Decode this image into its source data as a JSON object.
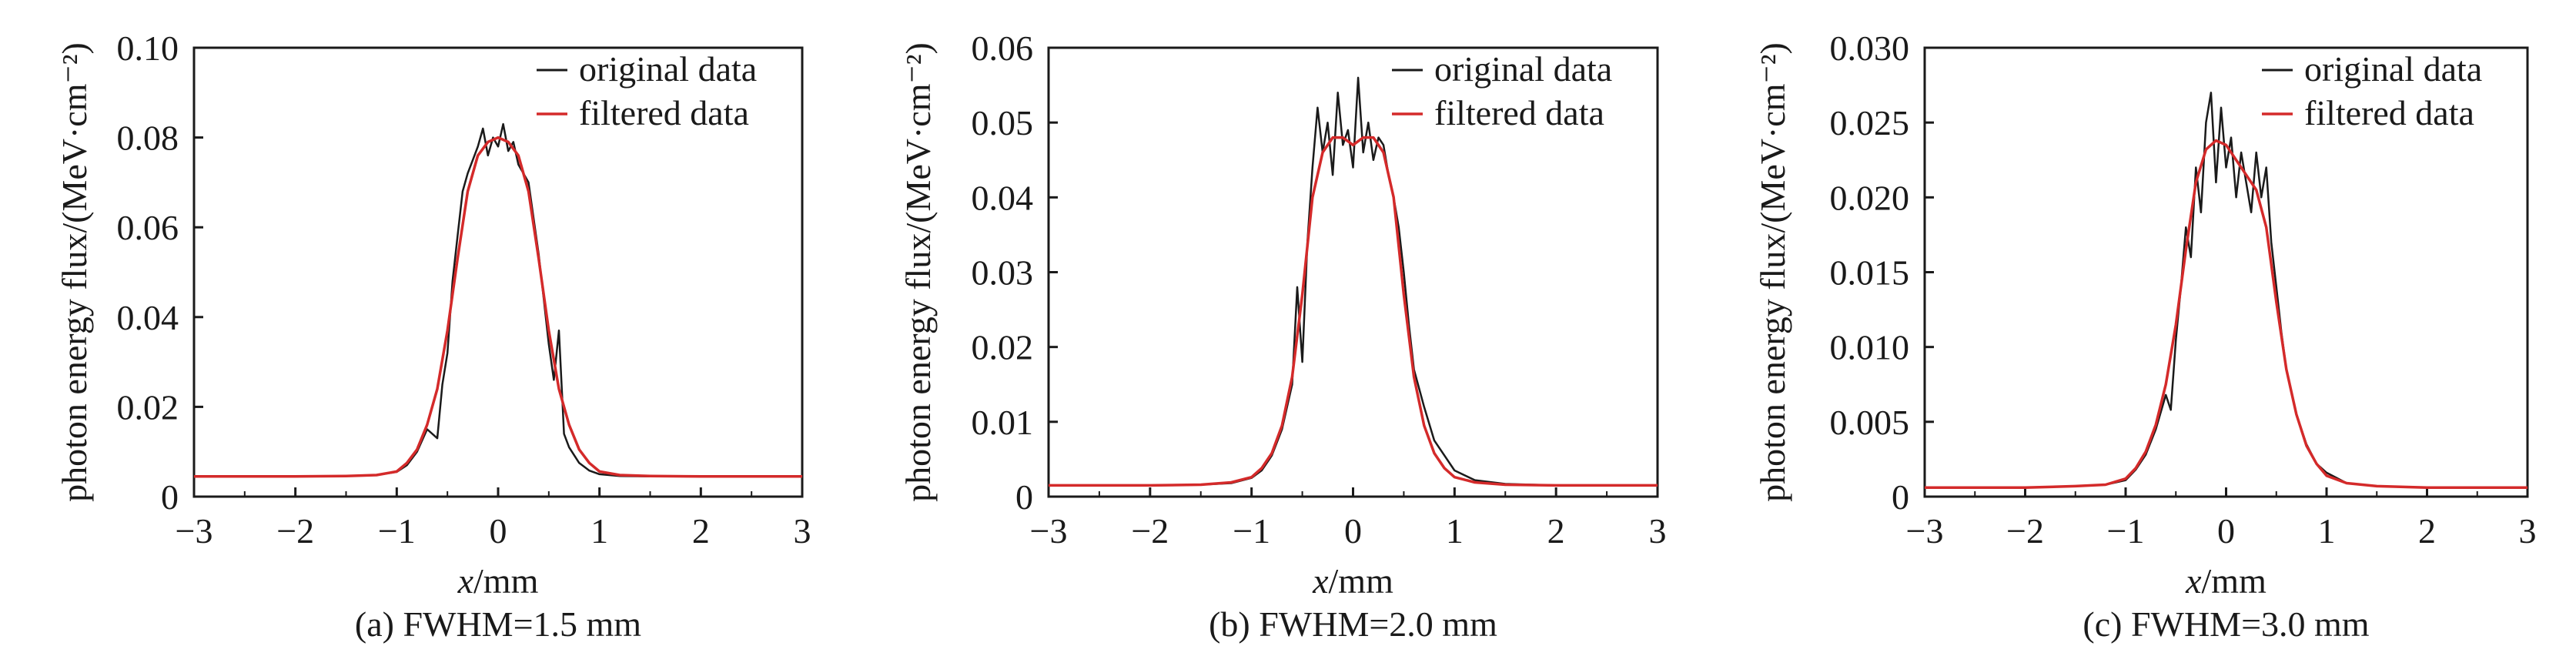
{
  "legend": {
    "original": "original data",
    "filtered": "filtered data"
  },
  "colors": {
    "original": "#1a1a1a",
    "filtered": "#d42a2a",
    "axis": "#1a1a1a"
  },
  "chart_data": [
    {
      "type": "line",
      "caption": "(a) FWHM=1.5 mm",
      "xlabel_var": "x",
      "xlabel_unit": "/mm",
      "ylabel": "photon energy flux/(MeV·cm⁻²)",
      "xlim": [
        -3,
        3
      ],
      "ylim": [
        0,
        0.1
      ],
      "xticks": [
        -3,
        -2,
        -1,
        0,
        1,
        2,
        3
      ],
      "xtick_labels": [
        "−3",
        "−2",
        "−1",
        "0",
        "1",
        "2",
        "3"
      ],
      "yticks": [
        0,
        0.02,
        0.04,
        0.06,
        0.08,
        0.1
      ],
      "ytick_labels": [
        "0",
        "0.02",
        "0.04",
        "0.06",
        "0.08",
        "0.10"
      ],
      "legend_position": "top-right",
      "grid": false,
      "series": [
        {
          "name": "original data",
          "x": [
            -3,
            -2,
            -1.5,
            -1.2,
            -1.0,
            -0.9,
            -0.8,
            -0.7,
            -0.6,
            -0.55,
            -0.5,
            -0.45,
            -0.4,
            -0.35,
            -0.3,
            -0.25,
            -0.2,
            -0.15,
            -0.1,
            -0.05,
            0,
            0.05,
            0.1,
            0.15,
            0.2,
            0.25,
            0.3,
            0.35,
            0.4,
            0.45,
            0.5,
            0.55,
            0.6,
            0.65,
            0.7,
            0.8,
            0.9,
            1.0,
            1.2,
            1.5,
            2,
            3
          ],
          "y": [
            0.0045,
            0.0045,
            0.0046,
            0.0048,
            0.0055,
            0.007,
            0.01,
            0.015,
            0.013,
            0.025,
            0.032,
            0.048,
            0.058,
            0.068,
            0.072,
            0.075,
            0.078,
            0.082,
            0.076,
            0.08,
            0.078,
            0.083,
            0.077,
            0.079,
            0.074,
            0.072,
            0.07,
            0.062,
            0.054,
            0.044,
            0.034,
            0.026,
            0.037,
            0.014,
            0.011,
            0.0075,
            0.0058,
            0.005,
            0.0046,
            0.0045,
            0.0045,
            0.0045
          ]
        },
        {
          "name": "filtered data",
          "x": [
            -3,
            -2,
            -1.5,
            -1.2,
            -1.0,
            -0.9,
            -0.8,
            -0.7,
            -0.6,
            -0.5,
            -0.4,
            -0.3,
            -0.2,
            -0.1,
            0,
            0.1,
            0.2,
            0.3,
            0.4,
            0.5,
            0.6,
            0.7,
            0.8,
            0.9,
            1.0,
            1.2,
            1.5,
            2,
            3
          ],
          "y": [
            0.0045,
            0.0045,
            0.0046,
            0.0048,
            0.0056,
            0.0075,
            0.0105,
            0.016,
            0.024,
            0.037,
            0.053,
            0.068,
            0.076,
            0.079,
            0.08,
            0.079,
            0.076,
            0.068,
            0.053,
            0.037,
            0.024,
            0.016,
            0.0105,
            0.0075,
            0.0056,
            0.0048,
            0.0046,
            0.0045,
            0.0045
          ]
        }
      ]
    },
    {
      "type": "line",
      "caption": "(b) FWHM=2.0 mm",
      "xlabel_var": "x",
      "xlabel_unit": "/mm",
      "ylabel": "photon energy flux/(MeV·cm⁻²)",
      "xlim": [
        -3,
        3
      ],
      "ylim": [
        0,
        0.06
      ],
      "xticks": [
        -3,
        -2,
        -1,
        0,
        1,
        2,
        3
      ],
      "xtick_labels": [
        "−3",
        "−2",
        "−1",
        "0",
        "1",
        "2",
        "3"
      ],
      "yticks": [
        0,
        0.01,
        0.02,
        0.03,
        0.04,
        0.05,
        0.06
      ],
      "ytick_labels": [
        "0",
        "0.01",
        "0.02",
        "0.03",
        "0.04",
        "0.05",
        "0.06"
      ],
      "legend_position": "top-right",
      "grid": false,
      "series": [
        {
          "name": "original data",
          "x": [
            -3,
            -2,
            -1.5,
            -1.2,
            -1.0,
            -0.9,
            -0.8,
            -0.7,
            -0.6,
            -0.55,
            -0.5,
            -0.45,
            -0.4,
            -0.35,
            -0.3,
            -0.25,
            -0.2,
            -0.15,
            -0.1,
            -0.05,
            0,
            0.05,
            0.1,
            0.15,
            0.2,
            0.25,
            0.3,
            0.35,
            0.4,
            0.45,
            0.5,
            0.55,
            0.6,
            0.7,
            0.8,
            0.9,
            1.0,
            1.2,
            1.5,
            2,
            3
          ],
          "y": [
            0.0015,
            0.0015,
            0.0016,
            0.0018,
            0.0025,
            0.0035,
            0.0055,
            0.009,
            0.015,
            0.028,
            0.018,
            0.034,
            0.044,
            0.052,
            0.046,
            0.05,
            0.043,
            0.054,
            0.047,
            0.049,
            0.044,
            0.056,
            0.046,
            0.05,
            0.045,
            0.048,
            0.047,
            0.043,
            0.04,
            0.036,
            0.03,
            0.023,
            0.017,
            0.012,
            0.0075,
            0.0055,
            0.0035,
            0.0022,
            0.0017,
            0.0015,
            0.0015
          ]
        },
        {
          "name": "filtered data",
          "x": [
            -3,
            -2,
            -1.5,
            -1.2,
            -1.0,
            -0.9,
            -0.8,
            -0.7,
            -0.6,
            -0.5,
            -0.4,
            -0.3,
            -0.2,
            -0.1,
            0,
            0.1,
            0.2,
            0.3,
            0.4,
            0.5,
            0.6,
            0.7,
            0.8,
            0.9,
            1.0,
            1.2,
            1.5,
            2,
            3
          ],
          "y": [
            0.0015,
            0.0015,
            0.0016,
            0.0019,
            0.0026,
            0.0038,
            0.0058,
            0.0095,
            0.016,
            0.027,
            0.04,
            0.046,
            0.048,
            0.048,
            0.047,
            0.048,
            0.048,
            0.046,
            0.04,
            0.027,
            0.016,
            0.0095,
            0.0058,
            0.0038,
            0.0026,
            0.0019,
            0.0016,
            0.0015,
            0.0015
          ]
        }
      ]
    },
    {
      "type": "line",
      "caption": "(c) FWHM=3.0 mm",
      "xlabel_var": "x",
      "xlabel_unit": "/mm",
      "ylabel": "photon energy flux/(MeV·cm⁻²)",
      "xlim": [
        -3,
        3
      ],
      "ylim": [
        0,
        0.03
      ],
      "xticks": [
        -3,
        -2,
        -1,
        0,
        1,
        2,
        3
      ],
      "xtick_labels": [
        "−3",
        "−2",
        "−1",
        "0",
        "1",
        "2",
        "3"
      ],
      "yticks": [
        0,
        0.005,
        0.01,
        0.015,
        0.02,
        0.025,
        0.03
      ],
      "ytick_labels": [
        "0",
        "0.005",
        "0.010",
        "0.015",
        "0.020",
        "0.025",
        "0.030"
      ],
      "legend_position": "top-right",
      "grid": false,
      "series": [
        {
          "name": "original data",
          "x": [
            -3,
            -2,
            -1.5,
            -1.2,
            -1.0,
            -0.9,
            -0.8,
            -0.7,
            -0.6,
            -0.55,
            -0.5,
            -0.45,
            -0.4,
            -0.35,
            -0.3,
            -0.25,
            -0.2,
            -0.15,
            -0.1,
            -0.05,
            0,
            0.05,
            0.1,
            0.15,
            0.2,
            0.25,
            0.3,
            0.35,
            0.4,
            0.45,
            0.5,
            0.55,
            0.6,
            0.7,
            0.8,
            0.9,
            1.0,
            1.2,
            1.5,
            2,
            3
          ],
          "y": [
            0.0006,
            0.0006,
            0.0007,
            0.0008,
            0.0011,
            0.0018,
            0.0028,
            0.0045,
            0.0068,
            0.0058,
            0.0105,
            0.014,
            0.018,
            0.016,
            0.022,
            0.019,
            0.025,
            0.027,
            0.021,
            0.026,
            0.022,
            0.024,
            0.02,
            0.023,
            0.021,
            0.019,
            0.023,
            0.02,
            0.022,
            0.017,
            0.014,
            0.011,
            0.0085,
            0.0055,
            0.0035,
            0.0022,
            0.0016,
            0.0009,
            0.0007,
            0.0006,
            0.0006
          ]
        },
        {
          "name": "filtered data",
          "x": [
            -3,
            -2,
            -1.5,
            -1.2,
            -1.0,
            -0.9,
            -0.8,
            -0.7,
            -0.6,
            -0.5,
            -0.4,
            -0.3,
            -0.2,
            -0.1,
            0,
            0.1,
            0.2,
            0.3,
            0.4,
            0.5,
            0.6,
            0.7,
            0.8,
            0.9,
            1.0,
            1.2,
            1.5,
            2,
            3
          ],
          "y": [
            0.0006,
            0.0006,
            0.0007,
            0.0008,
            0.0012,
            0.0019,
            0.003,
            0.0048,
            0.0075,
            0.0115,
            0.0165,
            0.021,
            0.0232,
            0.0238,
            0.0235,
            0.0225,
            0.0215,
            0.0205,
            0.018,
            0.013,
            0.0085,
            0.0055,
            0.0034,
            0.0022,
            0.0014,
            0.0009,
            0.0007,
            0.0006,
            0.0006
          ]
        }
      ]
    }
  ]
}
